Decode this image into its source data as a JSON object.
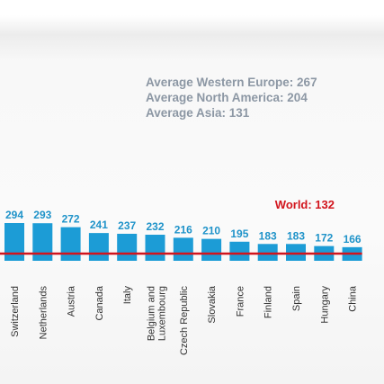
{
  "averages": [
    "Average Western Europe: 267",
    "Average North America: 204",
    "Average Asia: 131"
  ],
  "chart_data": {
    "type": "bar",
    "categories": [
      "Switzerland",
      "Netherlands",
      "Austria",
      "Canada",
      "Italy",
      "Belgium and Luxembourg",
      "Czech Republic",
      "Slovakia",
      "France",
      "Finland",
      "Spain",
      "Hungary",
      "China"
    ],
    "category_lines": [
      [
        "Switzerland"
      ],
      [
        "Netherlands"
      ],
      [
        "Austria"
      ],
      [
        "Canada"
      ],
      [
        "Italy"
      ],
      [
        "Belgium and",
        "Luxembourg"
      ],
      [
        "Czech Republic"
      ],
      [
        "Slovakia"
      ],
      [
        "France"
      ],
      [
        "Finland"
      ],
      [
        "Spain"
      ],
      [
        "Hungary"
      ],
      [
        "China"
      ]
    ],
    "values": [
      294,
      293,
      272,
      241,
      237,
      232,
      216,
      210,
      195,
      183,
      183,
      172,
      166
    ],
    "reference_line": {
      "label": "World: 132",
      "value": 132
    },
    "colors": {
      "bar": "#1c9cd6",
      "value_label": "#1f93c9",
      "reference": "#d2141c",
      "text": "#8c97a4"
    }
  }
}
